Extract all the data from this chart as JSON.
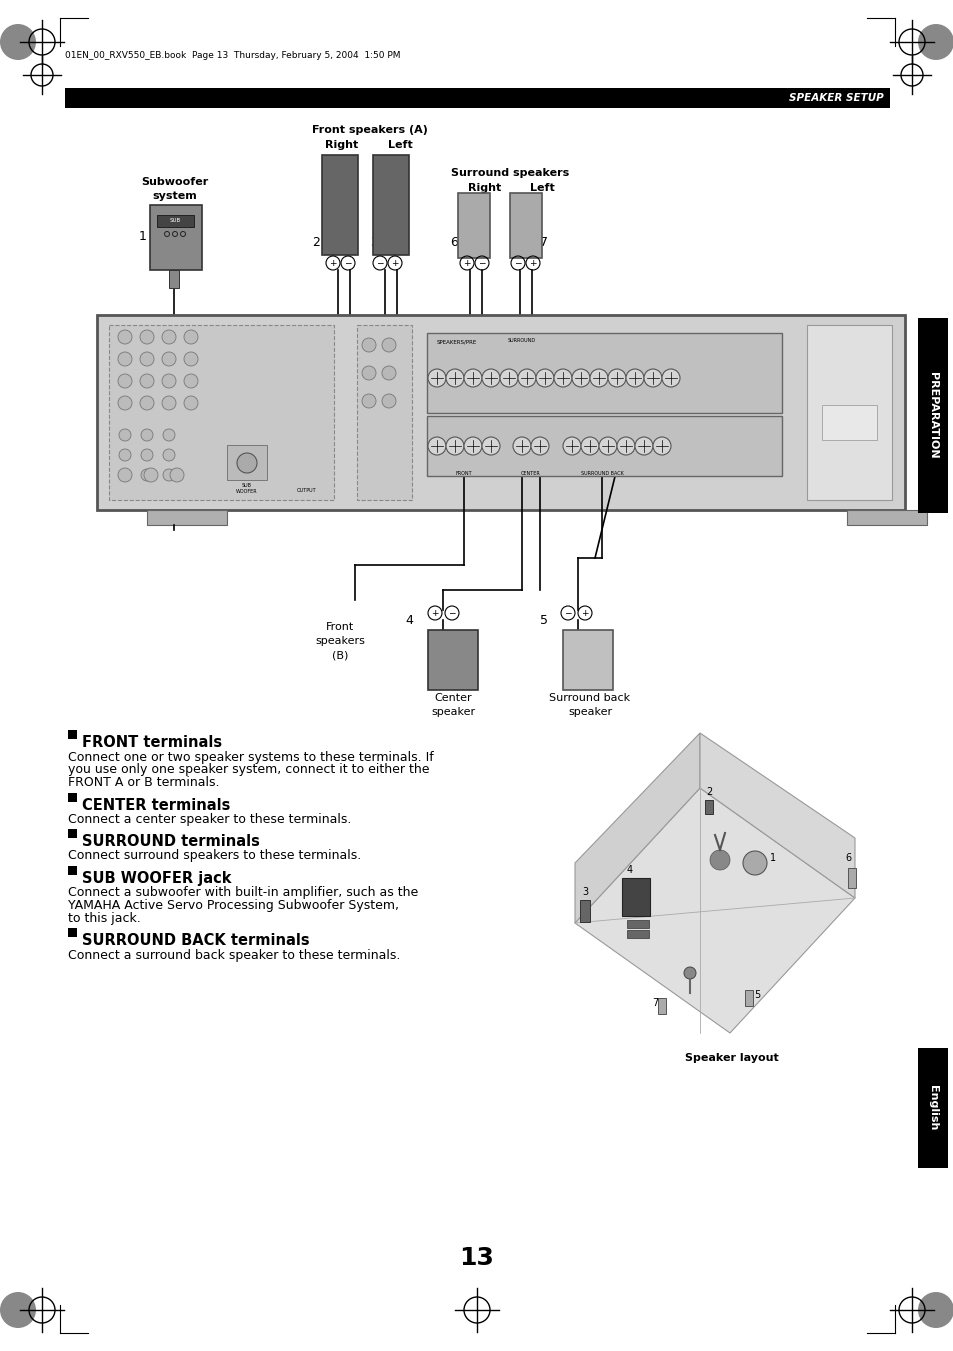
{
  "page_header_text": "01EN_00_RXV550_EB.book  Page 13  Thursday, February 5, 2004  1:50 PM",
  "section_title": "SPEAKER SETUP",
  "page_number": "13",
  "bg_color": "#ffffff",
  "header_bar_color": "#000000",
  "header_text_color": "#ffffff",
  "sidebar_right_color": "#000000",
  "sidebar_right_text": "PREPARATION",
  "sidebar_bottom_right_text": "English",
  "front_terminals_title": "FRONT terminals",
  "front_terminals_text1": "Connect one or two speaker systems to these terminals. If",
  "front_terminals_text2": "you use only one speaker system, connect it to either the",
  "front_terminals_text3": "FRONT A or B terminals.",
  "center_terminals_title": "CENTER terminals",
  "center_terminals_text": "Connect a center speaker to these terminals.",
  "surround_terminals_title": "SURROUND terminals",
  "surround_terminals_text": "Connect surround speakers to these terminals.",
  "sub_woofer_title": "SUB WOOFER jack",
  "sub_woofer_text1": "Connect a subwoofer with built-in amplifier, such as the",
  "sub_woofer_text2": "YAMAHA Active Servo Processing Subwoofer System,",
  "sub_woofer_text3": "to this jack.",
  "surround_back_title": "SURROUND BACK terminals",
  "surround_back_text": "Connect a surround back speaker to these terminals.",
  "speaker_layout_label": "Speaker layout",
  "label_front_speakers_a": "Front speakers (A)",
  "label_right": "Right",
  "label_left": "Left",
  "label_surround_speakers": "Surround speakers",
  "label_surr_right": "Right",
  "label_surr_left": "Left",
  "label_subwoofer_system_1": "Subwoofer",
  "label_subwoofer_system_2": "system",
  "label_front_speakers_b_1": "Front",
  "label_front_speakers_b_2": "speakers",
  "label_front_speakers_b_3": "(B)",
  "label_center_speaker_1": "Center",
  "label_center_speaker_2": "speaker",
  "label_surround_back_1": "Surround back",
  "label_surround_back_2": "speaker"
}
